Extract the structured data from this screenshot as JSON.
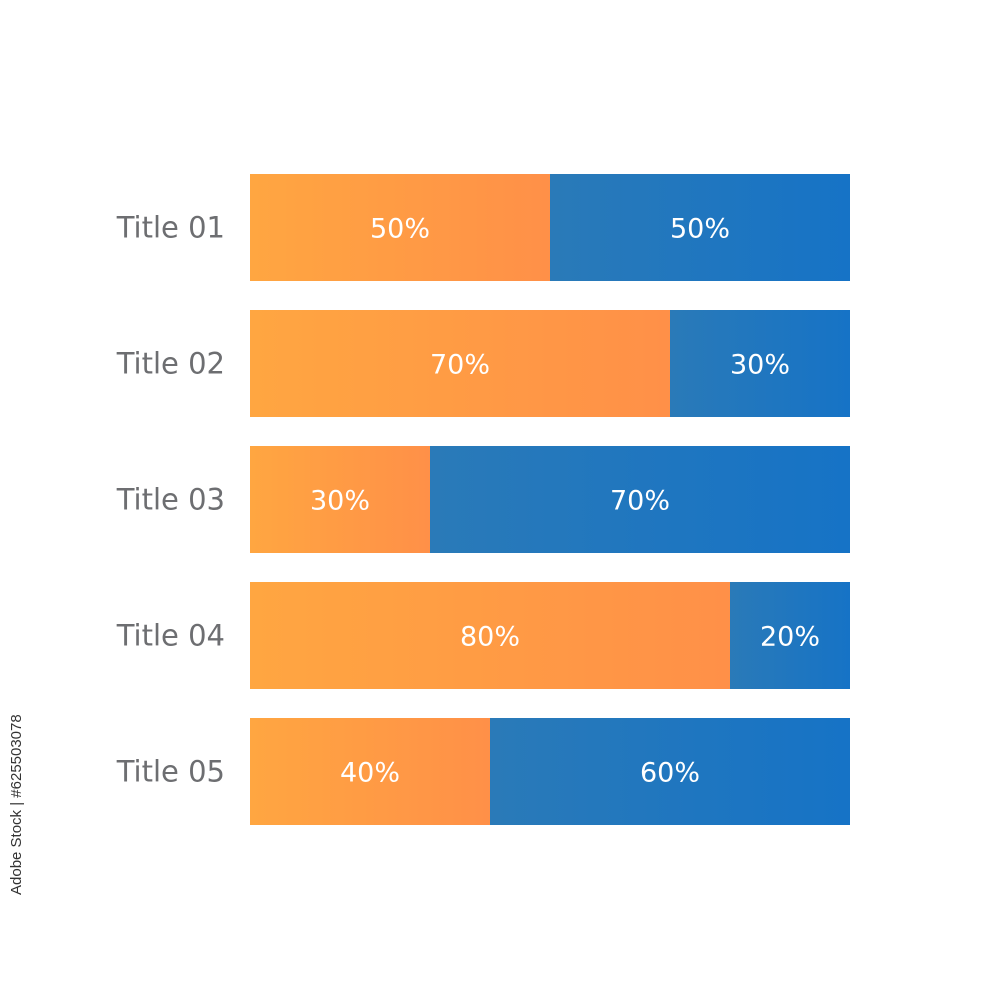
{
  "chart_data": {
    "type": "bar",
    "orientation": "horizontal",
    "stacked": true,
    "categories": [
      "Title 01",
      "Title 02",
      "Title 03",
      "Title 04",
      "Title 05"
    ],
    "series": [
      {
        "values": [
          50,
          70,
          30,
          80,
          40
        ],
        "color": "#ff9a3d",
        "labels": [
          "50%",
          "70%",
          "30%",
          "80%",
          "40%"
        ]
      },
      {
        "values": [
          50,
          30,
          70,
          20,
          60
        ],
        "color": "#1f77c3",
        "labels": [
          "50%",
          "30%",
          "70%",
          "20%",
          "60%"
        ]
      }
    ],
    "xlim": [
      0,
      100
    ],
    "grid": false,
    "legend": "none"
  },
  "watermark": {
    "text": "Adobe Stock | #625503078"
  }
}
